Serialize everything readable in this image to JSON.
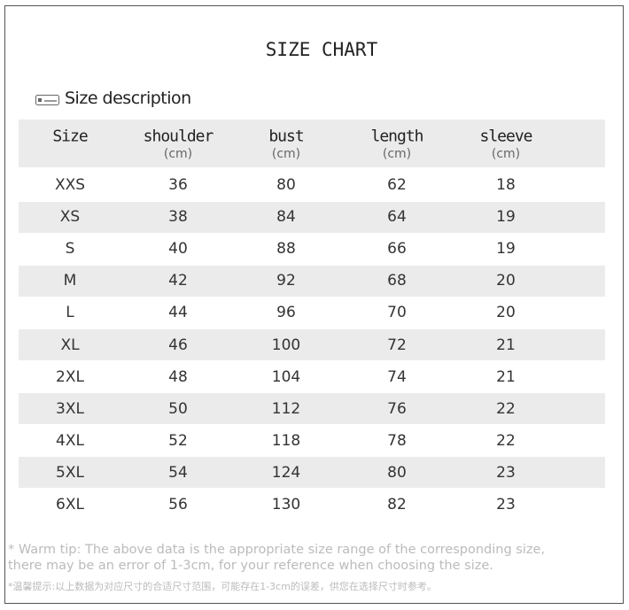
{
  "header": {
    "title": "SIZE CHART",
    "subtitle": "Size description"
  },
  "table": {
    "columns": [
      {
        "name": "Size",
        "unit": null
      },
      {
        "name": "shoulder",
        "unit": "(cm)"
      },
      {
        "name": "bust",
        "unit": "(cm)"
      },
      {
        "name": "length",
        "unit": "(cm)"
      },
      {
        "name": "sleeve",
        "unit": "(cm)"
      }
    ],
    "rows": [
      [
        "XXS",
        36,
        80,
        62,
        18
      ],
      [
        "XS",
        38,
        84,
        64,
        19
      ],
      [
        "S",
        40,
        88,
        66,
        19
      ],
      [
        "M",
        42,
        92,
        68,
        20
      ],
      [
        "L",
        44,
        96,
        70,
        20
      ],
      [
        "XL",
        46,
        100,
        72,
        21
      ],
      [
        "2XL",
        48,
        104,
        74,
        21
      ],
      [
        "3XL",
        50,
        112,
        76,
        22
      ],
      [
        "4XL",
        52,
        118,
        78,
        22
      ],
      [
        "5XL",
        54,
        124,
        80,
        23
      ],
      [
        "6XL",
        56,
        130,
        82,
        23
      ]
    ]
  },
  "footer": {
    "lines": [
      "* Warm tip: The above data is the appropriate size range of the corresponding size,",
      "there may be an error of 1-3cm, for your reference when choosing the size.",
      "*温馨提示:以上数据为对应尺寸的合适尺寸范围，可能存在1-3cm的误差，供您在选择尺寸时参考。"
    ]
  }
}
